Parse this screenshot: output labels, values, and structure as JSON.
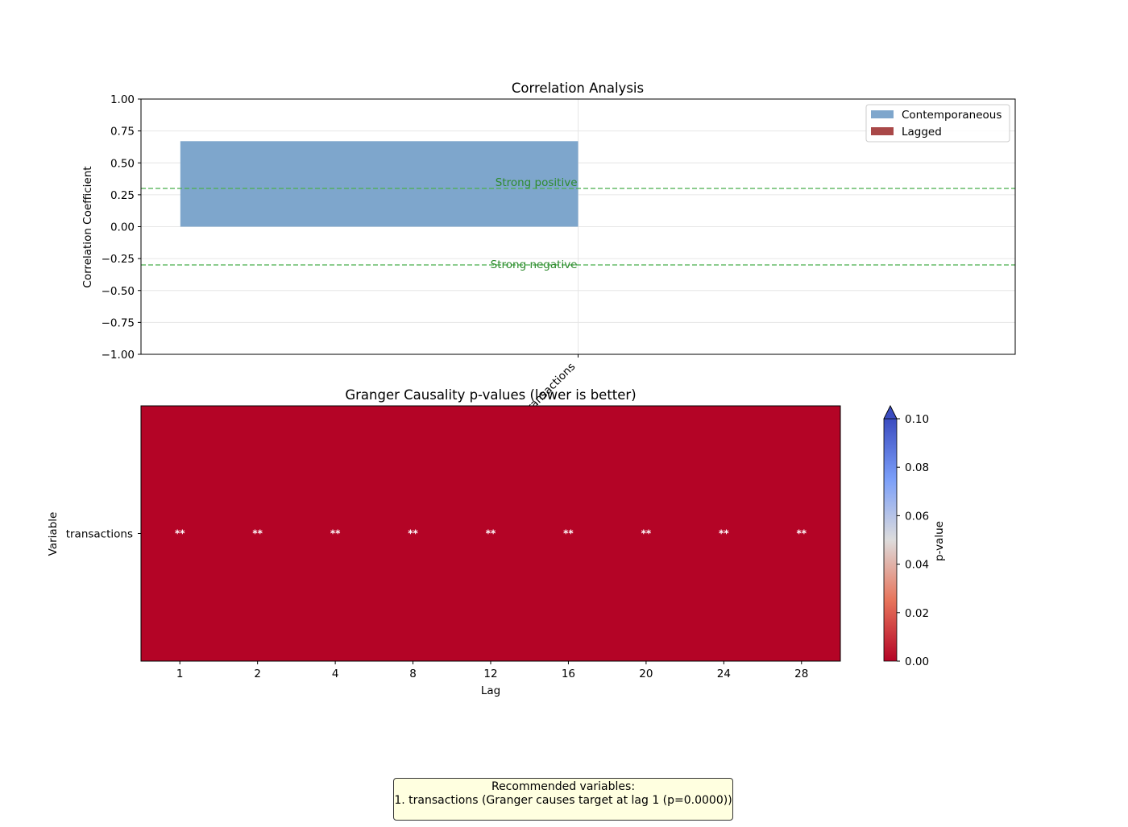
{
  "chart_data": [
    {
      "type": "bar",
      "title": "Correlation Analysis",
      "ylabel": "Correlation Coefficient",
      "xlabel": "",
      "categories": [
        "transactions"
      ],
      "series": [
        {
          "name": "Contemporaneous",
          "values": [
            0.67
          ],
          "color": "#7ea6cc"
        },
        {
          "name": "Lagged",
          "values": [
            null
          ],
          "color": "#a94848"
        }
      ],
      "ylim": [
        -1.0,
        1.0
      ],
      "yticks": [
        "−1.00",
        "−0.75",
        "−0.50",
        "−0.25",
        "0.00",
        "0.25",
        "0.50",
        "0.75",
        "1.00"
      ],
      "reference_lines": [
        {
          "value": 0.3,
          "label": "Strong positive",
          "color": "#4caf50"
        },
        {
          "value": -0.3,
          "label": "Strong negative",
          "color": "#4caf50"
        }
      ],
      "grid": true,
      "legend": "top-right"
    },
    {
      "type": "heatmap",
      "title": "Granger Causality p-values (lower is better)",
      "xlabel": "Lag",
      "ylabel": "Variable",
      "x": [
        "1",
        "2",
        "4",
        "8",
        "12",
        "16",
        "20",
        "24",
        "28"
      ],
      "y": [
        "transactions"
      ],
      "values": [
        [
          0.0,
          0.0,
          0.0,
          0.0,
          0.0,
          0.0,
          0.0,
          0.0,
          0.0
        ]
      ],
      "annotations": [
        [
          "**",
          "**",
          "**",
          "**",
          "**",
          "**",
          "**",
          "**",
          "**"
        ]
      ],
      "colormap": "coolwarm_r",
      "colorbar": {
        "label": "p-value",
        "range": [
          0.0,
          0.1
        ],
        "ticks": [
          "0.00",
          "0.02",
          "0.04",
          "0.06",
          "0.08",
          "0.10"
        ],
        "extend": "max"
      }
    }
  ],
  "recommendation": {
    "heading": "Recommended variables:",
    "lines": [
      "1. transactions (Granger causes target at lag 1 (p=0.0000))"
    ]
  }
}
